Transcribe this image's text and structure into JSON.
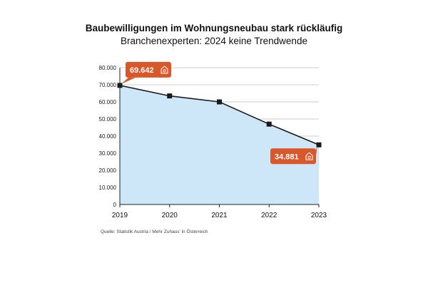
{
  "chart_data": {
    "type": "area",
    "title": "Baubewilligungen im Wohnungsneubau stark rückläufig",
    "subtitle": "Branchenexperten: 2024 keine Trendwende",
    "x": [
      "2019",
      "2020",
      "2021",
      "2022",
      "2023"
    ],
    "values": [
      69642,
      63500,
      60000,
      47000,
      34881
    ],
    "ylim": [
      0,
      80000
    ],
    "yticks": [
      "0",
      "10.000",
      "20.000",
      "30.000",
      "40.000",
      "50.000",
      "60.000",
      "70.000",
      "80.000"
    ],
    "grid": true,
    "annotations": [
      {
        "index": 0,
        "label": "69.642"
      },
      {
        "index": 4,
        "label": "34.881"
      }
    ],
    "colors": {
      "line": "#1a1a1a",
      "fill": "#cde6f8",
      "callout": "#d9582b",
      "grid": "#bdbdbd"
    },
    "source": "Quelle: Statistik Austria / Mehr Zuhaus' in Österreich"
  }
}
